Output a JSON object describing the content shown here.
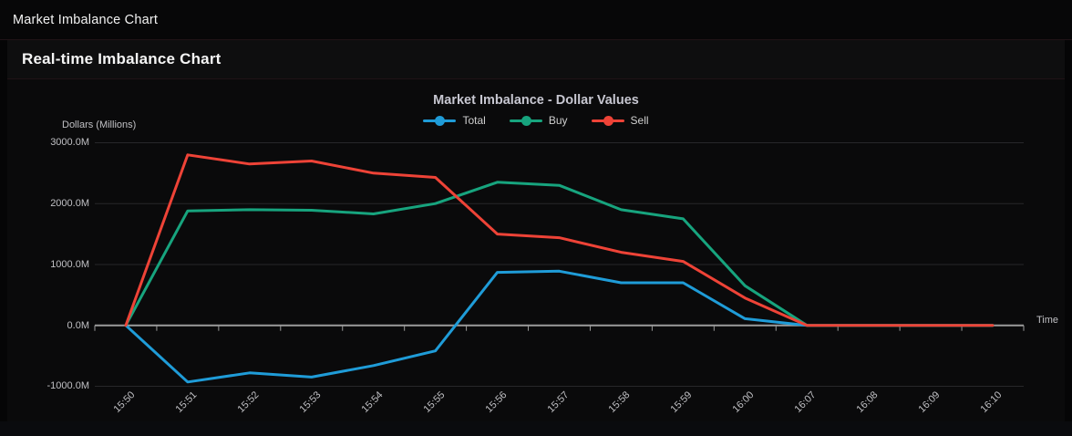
{
  "window": {
    "title": "Market Imbalance Chart"
  },
  "header": {
    "title": "Real-time Imbalance Chart"
  },
  "chart": {
    "y_tick_labels": [
      "3000.0M",
      "2000.0M",
      "1000.0M",
      "0.0M",
      "-1000.0M"
    ],
    "y_tick_values": [
      3000,
      2000,
      1000,
      0,
      -1000
    ],
    "colors": {
      "background": "#0a0a0b",
      "grid": "#27272a",
      "axis": "#9b9b9b",
      "text": "#c0c0c4"
    }
  },
  "chart_data": {
    "type": "line",
    "title": "Market Imbalance - Dollar Values",
    "xlabel": "Time",
    "ylabel": "Dollars (Millions)",
    "ylim": [
      -1000,
      3000
    ],
    "unit": "M",
    "grid": true,
    "legend_position": "top",
    "categories": [
      "15:50",
      "15:51",
      "15:52",
      "15:53",
      "15:54",
      "15:55",
      "15:56",
      "15:57",
      "15:58",
      "15:59",
      "16:00",
      "16:07",
      "16:08",
      "16:09",
      "16:10"
    ],
    "series": [
      {
        "name": "Total",
        "color": "#1f9cd8",
        "values": [
          0,
          -930,
          -780,
          -850,
          -660,
          -420,
          870,
          890,
          700,
          700,
          110,
          0,
          0,
          0,
          0
        ]
      },
      {
        "name": "Buy",
        "color": "#17a47e",
        "values": [
          0,
          1880,
          1900,
          1890,
          1830,
          2000,
          2350,
          2300,
          1900,
          1750,
          650,
          0,
          0,
          0,
          0
        ]
      },
      {
        "name": "Sell",
        "color": "#ee4337",
        "values": [
          0,
          2800,
          2650,
          2700,
          2500,
          2430,
          1500,
          1440,
          1200,
          1050,
          450,
          0,
          0,
          0,
          0
        ]
      }
    ]
  }
}
